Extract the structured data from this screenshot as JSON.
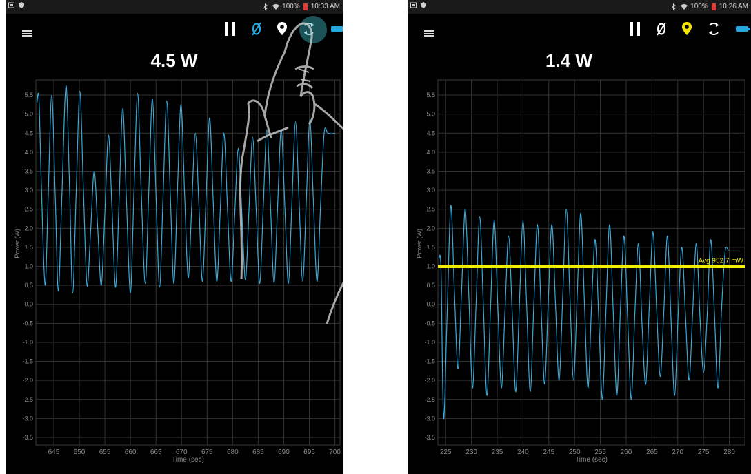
{
  "screens": [
    {
      "status": {
        "battery": "100%",
        "time": "10:33 AM"
      },
      "reading": "4.5 W",
      "chart_data": {
        "type": "line",
        "ylabel": "Power (W)",
        "xlabel": "Time (sec)",
        "xlim": [
          641.5,
          701
        ],
        "ylim": [
          -3.7,
          5.9
        ],
        "xticks": [
          "645",
          "650",
          "655",
          "660",
          "665",
          "670",
          "675",
          "680",
          "685",
          "690",
          "695",
          "700"
        ],
        "yticks": [
          "5.5",
          "5.0",
          "4.5",
          "4.0",
          "3.5",
          "3.0",
          "2.5",
          "2.0",
          "1.5",
          "1.0",
          "0.5",
          "0.0",
          "-0.5",
          "-1.0",
          "-1.5",
          "-2.0",
          "-2.5",
          "-3.0",
          "-3.5"
        ],
        "series": [
          {
            "color": "#3aa8d8",
            "x": [
              641.7,
              642.1,
              642.6,
              643.3,
              643.9,
              644.6,
              645.3,
              645.9,
              646.6,
              647.4,
              648.1,
              648.7,
              649.4,
              650.1,
              650.8,
              651.5,
              652.2,
              652.9,
              653.6,
              654.3,
              655.0,
              655.7,
              656.4,
              657.1,
              657.8,
              658.5,
              659.2,
              660.0,
              660.7,
              661.4,
              662.1,
              662.9,
              663.6,
              664.3,
              665.0,
              665.7,
              666.4,
              667.1,
              667.8,
              668.5,
              669.2,
              669.9,
              670.6,
              671.3,
              672.0,
              672.7,
              673.4,
              674.1,
              674.8,
              675.5,
              676.2,
              676.9,
              677.6,
              678.3,
              679.0,
              679.7,
              680.4,
              681.1,
              681.8,
              682.5,
              683.2,
              683.9,
              684.6,
              685.3,
              686.0,
              686.7,
              687.4,
              688.1,
              688.8,
              689.5,
              690.2,
              690.9,
              691.6,
              692.3,
              693.0,
              693.7,
              694.4,
              695.1,
              695.8,
              696.5,
              697.2,
              697.9,
              698.6,
              699.3,
              700.0
            ],
            "y": [
              5.3,
              5.4,
              3.0,
              0.5,
              2.8,
              5.5,
              2.8,
              0.35,
              2.9,
              5.75,
              3.0,
              0.3,
              3.0,
              5.6,
              3.0,
              0.5,
              1.9,
              3.5,
              2.0,
              0.5,
              2.4,
              4.45,
              2.5,
              0.45,
              2.8,
              5.15,
              2.8,
              0.3,
              3.0,
              5.55,
              3.0,
              0.55,
              3.0,
              5.4,
              2.9,
              0.45,
              2.9,
              5.35,
              2.9,
              0.55,
              3.0,
              5.25,
              2.9,
              0.7,
              2.6,
              4.5,
              2.6,
              0.6,
              2.8,
              4.9,
              2.7,
              0.6,
              2.55,
              4.5,
              2.5,
              0.6,
              2.35,
              4.1,
              2.4,
              0.65,
              2.5,
              4.4,
              2.5,
              0.55,
              2.6,
              4.6,
              2.6,
              0.55,
              2.6,
              4.6,
              2.6,
              0.55,
              2.7,
              4.8,
              2.7,
              0.6,
              2.7,
              4.85,
              2.7,
              0.6,
              2.6,
              4.5,
              4.5,
              4.48,
              4.5
            ]
          }
        ]
      }
    },
    {
      "status": {
        "battery": "100%",
        "time": "10:26 AM"
      },
      "reading": "1.4 W",
      "avg_label": "Avg 952.7 mW",
      "chart_data": {
        "type": "line",
        "ylabel": "Power (W)",
        "xlabel": "Time (sec)",
        "xlim": [
          223.5,
          283
        ],
        "ylim": [
          -3.7,
          5.9
        ],
        "avg_line": 1.0,
        "xticks": [
          "225",
          "230",
          "235",
          "240",
          "245",
          "250",
          "255",
          "260",
          "265",
          "270",
          "275",
          "280"
        ],
        "yticks": [
          "5.5",
          "5.0",
          "4.5",
          "4.0",
          "3.5",
          "3.0",
          "2.5",
          "2.0",
          "1.5",
          "1.0",
          "0.5",
          "0.0",
          "-0.5",
          "-1.0",
          "-1.5",
          "-2.0",
          "-2.5",
          "-3.0",
          "-3.5"
        ],
        "series": [
          {
            "color": "#3aa8d8",
            "x": [
              223.7,
              224.1,
              224.6,
              225.3,
              226.0,
              226.7,
              227.4,
              228.1,
              228.8,
              229.5,
              230.2,
              230.9,
              231.6,
              232.3,
              233.0,
              233.7,
              234.4,
              235.1,
              235.8,
              236.5,
              237.2,
              237.9,
              238.6,
              239.3,
              240.0,
              240.7,
              241.4,
              242.1,
              242.8,
              243.5,
              244.2,
              244.9,
              245.6,
              246.3,
              247.0,
              247.7,
              248.4,
              249.1,
              249.8,
              250.5,
              251.2,
              251.9,
              252.6,
              253.3,
              254.0,
              254.7,
              255.4,
              256.1,
              256.8,
              257.5,
              258.2,
              258.9,
              259.6,
              260.3,
              261.0,
              261.7,
              262.4,
              263.1,
              263.8,
              264.5,
              265.2,
              265.9,
              266.6,
              267.3,
              268.0,
              268.7,
              269.4,
              270.1,
              270.8,
              271.5,
              272.2,
              272.9,
              273.6,
              274.3,
              275.0,
              275.7,
              276.4,
              277.1,
              277.8,
              278.5,
              279.2,
              279.9,
              280.6,
              281.3,
              282.0
            ],
            "y": [
              1.2,
              0.9,
              -3.0,
              -0.2,
              2.6,
              0.3,
              -1.7,
              0.4,
              2.5,
              0.2,
              -2.2,
              0.0,
              2.3,
              0.0,
              -2.4,
              -0.1,
              2.2,
              0.0,
              -2.2,
              -0.2,
              1.8,
              -0.2,
              -2.3,
              0.0,
              2.2,
              0.0,
              -2.3,
              0.0,
              2.1,
              -0.1,
              -2.1,
              0.1,
              2.1,
              0.0,
              -2.0,
              0.2,
              2.5,
              0.2,
              -2.0,
              0.2,
              2.4,
              0.1,
              -2.2,
              0.0,
              1.7,
              -0.4,
              -2.5,
              -0.1,
              2.1,
              -0.2,
              -2.4,
              -0.1,
              1.8,
              -0.4,
              -2.5,
              -0.2,
              1.6,
              -0.6,
              -2.1,
              0.0,
              1.9,
              -0.1,
              -1.9,
              -0.2,
              1.8,
              -0.4,
              -2.4,
              -0.2,
              1.5,
              -0.3,
              -2.0,
              -0.2,
              1.6,
              -0.3,
              -1.8,
              -0.3,
              1.7,
              -0.2,
              -2.2,
              -0.1,
              1.4,
              1.4,
              1.4,
              1.4,
              1.4
            ]
          }
        ]
      }
    }
  ]
}
